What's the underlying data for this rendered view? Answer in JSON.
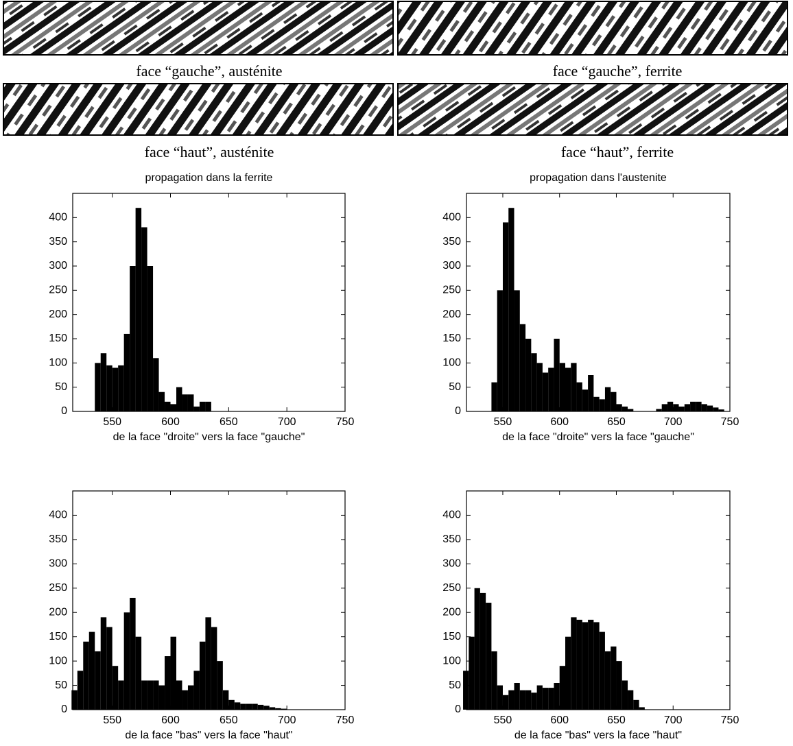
{
  "captions": [
    "face “gauche”, austénite",
    "face “gauche”, ferrite",
    "face “haut”, austénite",
    "face “haut”, ferrite"
  ],
  "chart_data": [
    {
      "type": "histogram",
      "title": "propagation dans la ferrite",
      "xlabel": "de la face \"droite\" vers la face \"gauche\"",
      "color": "#000000",
      "bins": [
        535,
        540,
        545,
        550,
        555,
        560,
        565,
        570,
        575,
        580,
        585,
        590,
        595,
        600,
        605,
        610,
        615,
        620,
        625,
        630,
        635
      ],
      "values": [
        100,
        120,
        95,
        90,
        95,
        160,
        300,
        420,
        380,
        300,
        110,
        40,
        20,
        15,
        50,
        35,
        35,
        10,
        20,
        20
      ],
      "xlim": [
        516,
        750
      ],
      "xticks": [
        550,
        600,
        650,
        700,
        750
      ],
      "ylim": [
        0,
        450
      ],
      "yticks": [
        0,
        50,
        100,
        150,
        200,
        250,
        300,
        350,
        400
      ]
    },
    {
      "type": "histogram",
      "title": "propagation dans l'austenite",
      "xlabel": "de la face \"droite\" vers la face \"gauche\"",
      "color": "#000000",
      "bins": [
        540,
        545,
        550,
        555,
        560,
        565,
        570,
        575,
        580,
        585,
        590,
        595,
        600,
        605,
        610,
        615,
        620,
        625,
        630,
        635,
        640,
        645,
        650,
        655,
        660,
        665,
        670,
        675,
        680,
        685,
        690,
        695,
        700,
        705,
        710,
        715,
        720,
        725,
        730,
        735,
        740,
        745
      ],
      "values": [
        60,
        250,
        390,
        420,
        250,
        180,
        150,
        120,
        100,
        80,
        90,
        150,
        100,
        90,
        100,
        60,
        45,
        75,
        30,
        25,
        50,
        40,
        15,
        10,
        5,
        0,
        0,
        0,
        0,
        5,
        15,
        20,
        15,
        10,
        15,
        20,
        20,
        15,
        12,
        8,
        4
      ],
      "xlim": [
        518,
        750
      ],
      "xticks": [
        550,
        600,
        650,
        700,
        750
      ],
      "ylim": [
        0,
        450
      ],
      "yticks": [
        0,
        50,
        100,
        150,
        200,
        250,
        300,
        350,
        400
      ]
    },
    {
      "type": "histogram",
      "xlabel": "de la face \"bas\" vers la face \"haut\"",
      "color": "#000000",
      "bins": [
        515,
        520,
        525,
        530,
        535,
        540,
        545,
        550,
        555,
        560,
        565,
        570,
        575,
        580,
        585,
        590,
        595,
        600,
        605,
        610,
        615,
        620,
        625,
        630,
        635,
        640,
        645,
        650,
        655,
        660,
        665,
        670,
        675,
        680,
        685,
        690,
        695,
        700
      ],
      "values": [
        40,
        80,
        140,
        160,
        120,
        190,
        170,
        90,
        60,
        200,
        230,
        150,
        60,
        60,
        60,
        50,
        110,
        150,
        60,
        40,
        50,
        80,
        140,
        190,
        170,
        100,
        40,
        20,
        15,
        12,
        12,
        12,
        10,
        8,
        5,
        3,
        2
      ],
      "xlim": [
        516,
        750
      ],
      "xticks": [
        550,
        600,
        650,
        700,
        750
      ],
      "ylim": [
        0,
        450
      ],
      "yticks": [
        0,
        50,
        100,
        150,
        200,
        250,
        300,
        350,
        400
      ]
    },
    {
      "type": "histogram",
      "xlabel": "de la face \"bas\" vers la face \"haut\"",
      "color": "#000000",
      "bins": [
        515,
        520,
        525,
        530,
        535,
        540,
        545,
        550,
        555,
        560,
        565,
        570,
        575,
        580,
        585,
        590,
        595,
        600,
        605,
        610,
        615,
        620,
        625,
        630,
        635,
        640,
        645,
        650,
        655,
        660,
        665,
        670,
        675
      ],
      "values": [
        80,
        150,
        250,
        240,
        220,
        120,
        50,
        30,
        40,
        55,
        40,
        40,
        35,
        50,
        45,
        45,
        55,
        90,
        150,
        190,
        185,
        180,
        185,
        180,
        160,
        120,
        130,
        100,
        60,
        40,
        20,
        5
      ],
      "xlim": [
        518,
        750
      ],
      "xticks": [
        550,
        600,
        650,
        700,
        750
      ],
      "ylim": [
        0,
        450
      ],
      "yticks": [
        0,
        50,
        100,
        150,
        200,
        250,
        300,
        350,
        400
      ]
    }
  ]
}
